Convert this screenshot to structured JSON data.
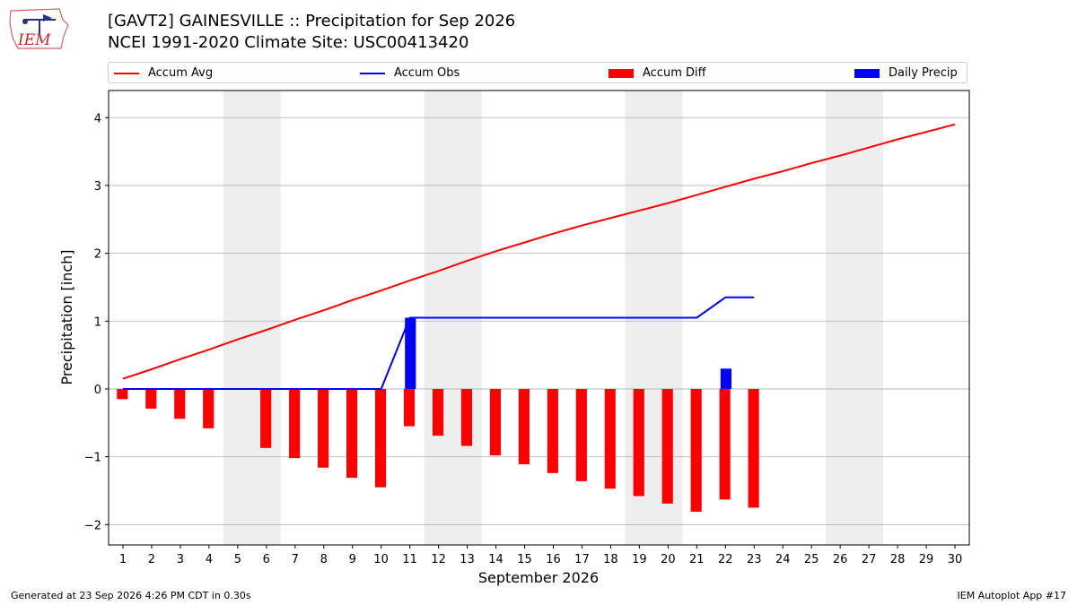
{
  "header": {
    "logo_text": "IEM",
    "title_line1": "[GAVT2] GAINESVILLE :: Precipitation for Sep 2026",
    "title_line2": "NCEI 1991-2020 Climate Site: USC00413420"
  },
  "footer": {
    "left": "Generated at 23 Sep 2026 4:26 PM CDT in 0.30s",
    "right": "IEM Autoplot App #17"
  },
  "colors": {
    "accum_avg": "#ff0000",
    "accum_obs": "#0000ff",
    "accum_diff": "#ff0000",
    "daily_precip": "#0000ff",
    "weekend_shade": "#eeeeee",
    "grid": "#b0b0b0"
  },
  "chart_data": {
    "type": "bar",
    "xlabel": "September 2026",
    "ylabel": "Precipitation [inch]",
    "xlim": [
      0.5,
      30.5
    ],
    "ylim": [
      -2.3,
      4.4
    ],
    "yticks": [
      -2,
      -1,
      0,
      1,
      2,
      3,
      4
    ],
    "ytick_labels": [
      "−2",
      "−1",
      "0",
      "1",
      "2",
      "3",
      "4"
    ],
    "grid": "horizontal",
    "legend_placement": "top",
    "days": [
      1,
      2,
      3,
      4,
      5,
      6,
      7,
      8,
      9,
      10,
      11,
      12,
      13,
      14,
      15,
      16,
      17,
      18,
      19,
      20,
      21,
      22,
      23,
      24,
      25,
      26,
      27,
      28,
      29,
      30
    ],
    "weekend_spans": [
      [
        5,
        6
      ],
      [
        12,
        13
      ],
      [
        19,
        20
      ],
      [
        26,
        27
      ]
    ],
    "series": [
      {
        "name": "Accum Avg",
        "kind": "line",
        "x": [
          1,
          2,
          3,
          4,
          5,
          6,
          7,
          8,
          9,
          10,
          11,
          12,
          13,
          14,
          15,
          16,
          17,
          18,
          19,
          20,
          21,
          22,
          23,
          24,
          25,
          26,
          27,
          28,
          29,
          30
        ],
        "values": [
          0.15,
          0.29,
          0.44,
          0.58,
          0.73,
          0.87,
          1.02,
          1.16,
          1.31,
          1.45,
          1.6,
          1.74,
          1.89,
          2.03,
          2.16,
          2.29,
          2.41,
          2.52,
          2.63,
          2.74,
          2.86,
          2.98,
          3.1,
          3.21,
          3.33,
          3.44,
          3.56,
          3.68,
          3.79,
          3.9
        ]
      },
      {
        "name": "Accum Obs",
        "kind": "line",
        "x": [
          1,
          2,
          3,
          4,
          6,
          7,
          8,
          9,
          10,
          11,
          12,
          13,
          14,
          15,
          16,
          17,
          18,
          19,
          20,
          21,
          22,
          23
        ],
        "values": [
          0,
          0,
          0,
          0,
          0,
          0,
          0,
          0,
          0,
          1.05,
          1.05,
          1.05,
          1.05,
          1.05,
          1.05,
          1.05,
          1.05,
          1.05,
          1.05,
          1.05,
          1.35,
          1.35
        ]
      },
      {
        "name": "Accum Diff",
        "kind": "bar",
        "x": [
          1,
          2,
          3,
          4,
          6,
          7,
          8,
          9,
          10,
          11,
          12,
          13,
          14,
          15,
          16,
          17,
          18,
          19,
          20,
          21,
          22,
          23
        ],
        "values": [
          -0.15,
          -0.29,
          -0.44,
          -0.58,
          -0.87,
          -1.02,
          -1.16,
          -1.31,
          -1.45,
          -0.55,
          -0.69,
          -0.84,
          -0.98,
          -1.11,
          -1.24,
          -1.36,
          -1.47,
          -1.58,
          -1.69,
          -1.81,
          -1.63,
          -1.75
        ]
      },
      {
        "name": "Daily Precip",
        "kind": "bar",
        "x": [
          11,
          22
        ],
        "values": [
          1.05,
          0.3
        ]
      }
    ]
  }
}
